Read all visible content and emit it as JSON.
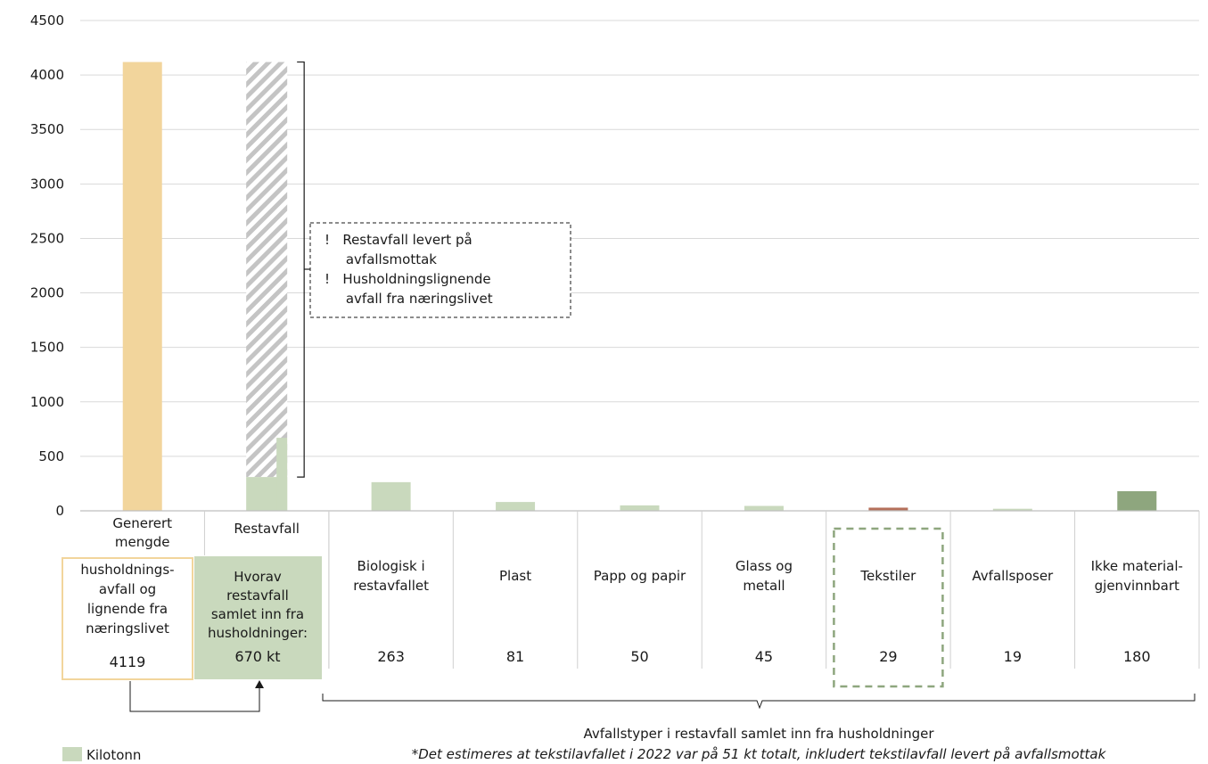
{
  "chart_data": {
    "type": "bar",
    "ylim": [
      0,
      4500
    ],
    "yticks": [
      "0",
      "500",
      "1000",
      "1500",
      "2000",
      "2500",
      "3000",
      "3500",
      "4000",
      "4500"
    ],
    "grid": true,
    "categories": [
      {
        "id": "generert",
        "label_lines": [
          "Generert",
          "mengde"
        ],
        "value": 4119,
        "color": "#f2d59c",
        "box_lines": [
          "husholdnings-",
          "avfall og",
          "lignende fra",
          "næringslivet"
        ],
        "box_value": "4119"
      },
      {
        "id": "restavfall",
        "label_lines": [
          "Restavfall"
        ],
        "value": 670,
        "color": "#c9d9bd",
        "hatched_total": 4119,
        "box_lines": [
          "Hvorav",
          "restavfall",
          "samlet inn fra",
          "husholdninger:"
        ],
        "box_value": "670 kt"
      },
      {
        "id": "biologisk",
        "label_lines": [
          "Biologisk i",
          "restavfallet"
        ],
        "value": 263,
        "value_label": "263",
        "color": "#c9d9bd"
      },
      {
        "id": "plast",
        "label_lines": [
          "Plast"
        ],
        "value": 81,
        "value_label": "81",
        "color": "#c9d9bd"
      },
      {
        "id": "papp",
        "label_lines": [
          "Papp og papir"
        ],
        "value": 50,
        "value_label": "50",
        "color": "#c9d9bd"
      },
      {
        "id": "glass",
        "label_lines": [
          "Glass og",
          "metall"
        ],
        "value": 45,
        "value_label": "45",
        "color": "#c9d9bd"
      },
      {
        "id": "tekstiler",
        "label_lines": [
          "Tekstiler"
        ],
        "value": 29,
        "value_label": "29",
        "color": "#b5705a",
        "highlighted": true
      },
      {
        "id": "avfallsposer",
        "label_lines": [
          "Avfallsposer"
        ],
        "value": 19,
        "value_label": "19",
        "color": "#c9d9bd"
      },
      {
        "id": "ikke",
        "label_lines": [
          "Ikke material-",
          "gjenvinnbart"
        ],
        "value": 180,
        "value_label": "180",
        "color": "#8ea67e"
      }
    ],
    "annotation_lines": [
      "!   Restavfall levert på",
      "     avfallsmottak",
      "!   Husholdningslignende",
      "     avfall fra næringslivet"
    ],
    "group_label": "Avfallstyper i restavfall samlet inn fra husholdninger",
    "footnote": "*Det estimeres at tekstilavfallet i 2022 var på 51 kt totalt, inkludert tekstilavfall levert på avfallsmottak",
    "legend": {
      "label": "Kilotonn",
      "color": "#c9d9bd",
      "position": "bottom-left"
    }
  }
}
